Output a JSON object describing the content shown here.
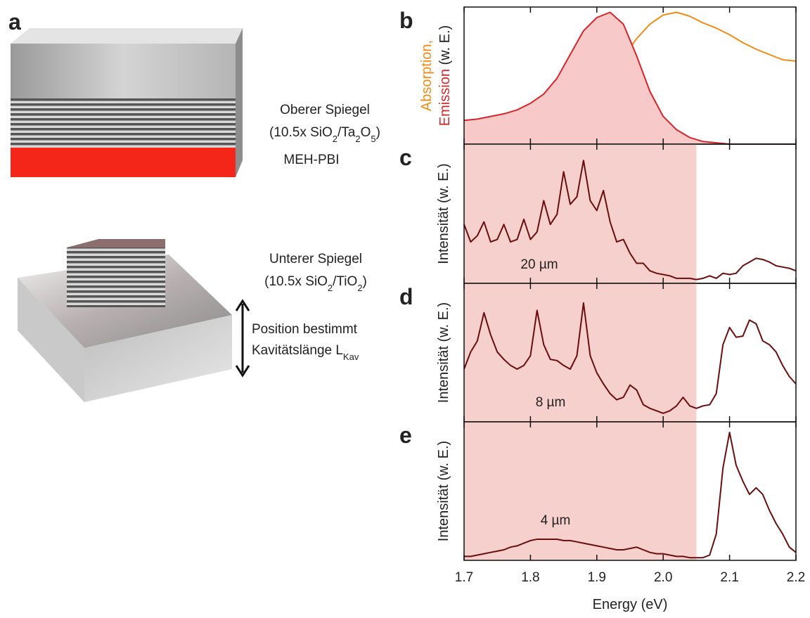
{
  "diagram": {
    "panel_label": "a",
    "top_mirror": "Oberer Spiegel",
    "top_formula": [
      {
        "t": "(10.5x SiO"
      },
      {
        "t": "2",
        "sub": true
      },
      {
        "t": "/Ta"
      },
      {
        "t": "2",
        "sub": true
      },
      {
        "t": "O"
      },
      {
        "t": "5",
        "sub": true
      },
      {
        "t": ")"
      }
    ],
    "active_layer": "MEH-PBI",
    "bottom_mirror": "Unterer Spiegel",
    "bottom_formula": [
      {
        "t": "(10.5x SiO"
      },
      {
        "t": "2",
        "sub": true
      },
      {
        "t": "/TiO"
      },
      {
        "t": "2",
        "sub": true
      },
      {
        "t": ")"
      }
    ],
    "arrow_line1": "Position bestimmt",
    "arrow_line2": [
      {
        "t": "Kavitätslänge L"
      },
      {
        "t": "Kav",
        "sub": true
      }
    ]
  },
  "chart_data": [
    {
      "type": "line",
      "panel_label": "b",
      "ylabel": "(w. E.)",
      "xlim": [
        1.7,
        2.2
      ],
      "xticks": [
        1.7,
        1.8,
        1.9,
        {
          "value": 2.0,
          "label": "2.0"
        },
        2.1,
        2.2
      ],
      "xticklabels": false,
      "ylim": [
        0,
        1.04
      ],
      "x": [
        1.7,
        1.72,
        1.74,
        1.76,
        1.78,
        1.8,
        1.82,
        1.84,
        1.86,
        1.88,
        1.9,
        1.92,
        1.94,
        1.96,
        1.98,
        2.0,
        2.02,
        2.04,
        2.06,
        2.08,
        2.1,
        2.12,
        2.14,
        2.16,
        2.18,
        2.2
      ],
      "series": [
        {
          "name": "Absorption,",
          "color": "#f28a12",
          "values": [
            0.01,
            0.02,
            0.02,
            0.03,
            0.03,
            0.04,
            0.06,
            0.09,
            0.15,
            0.24,
            0.36,
            0.52,
            0.66,
            0.8,
            0.91,
            0.98,
            1.0,
            0.97,
            0.92,
            0.88,
            0.83,
            0.77,
            0.72,
            0.68,
            0.64,
            0.63
          ]
        },
        {
          "name": "Emission",
          "color": "#d6262a",
          "fill": "#f8c9c9",
          "values": [
            0.18,
            0.19,
            0.21,
            0.23,
            0.26,
            0.31,
            0.38,
            0.5,
            0.68,
            0.86,
            0.96,
            1.0,
            0.91,
            0.67,
            0.4,
            0.21,
            0.11,
            0.05,
            0.02,
            0.01,
            0,
            0,
            0,
            0,
            0,
            0
          ]
        }
      ]
    },
    {
      "type": "line",
      "panel_label": "c",
      "ylabel": "Intensität (w. E.)",
      "annotation": "20 µm",
      "xlim": [
        1.7,
        2.2
      ],
      "xticks": [
        1.7,
        1.8,
        1.9,
        {
          "value": 2.0,
          "label": "2.0"
        },
        2.1,
        2.2
      ],
      "xticklabels": false,
      "ylim": [
        0,
        1.11
      ],
      "highlight": {
        "x": [
          1.7,
          2.05
        ],
        "color": "#f5d0cd"
      },
      "x": [
        1.7,
        1.71,
        1.72,
        1.73,
        1.74,
        1.75,
        1.76,
        1.77,
        1.78,
        1.79,
        1.8,
        1.81,
        1.82,
        1.83,
        1.84,
        1.85,
        1.86,
        1.87,
        1.88,
        1.89,
        1.9,
        1.91,
        1.92,
        1.93,
        1.94,
        1.95,
        1.96,
        1.97,
        1.98,
        1.99,
        2.0,
        2.01,
        2.02,
        2.03,
        2.04,
        2.05,
        2.06,
        2.07,
        2.08,
        2.09,
        2.1,
        2.11,
        2.12,
        2.13,
        2.14,
        2.15,
        2.16,
        2.17,
        2.18,
        2.19,
        2.2
      ],
      "series": [
        {
          "color": "#6b0d0d",
          "values": [
            0.47,
            0.33,
            0.38,
            0.49,
            0.33,
            0.35,
            0.47,
            0.33,
            0.35,
            0.51,
            0.35,
            0.41,
            0.66,
            0.47,
            0.55,
            0.89,
            0.63,
            0.69,
            0.98,
            0.66,
            0.58,
            0.74,
            0.49,
            0.33,
            0.35,
            0.24,
            0.16,
            0.16,
            0.1,
            0.08,
            0.07,
            0.06,
            0.04,
            0.04,
            0.04,
            0.03,
            0.04,
            0.06,
            0.04,
            0.08,
            0.07,
            0.08,
            0.14,
            0.17,
            0.2,
            0.19,
            0.17,
            0.14,
            0.13,
            0.12,
            0.1
          ]
        }
      ]
    },
    {
      "type": "line",
      "panel_label": "d",
      "ylabel": "Intensität (w. E.)",
      "annotation": "8 µm",
      "xlim": [
        1.7,
        2.2
      ],
      "xticks": [
        1.7,
        1.8,
        1.9,
        {
          "value": 2.0,
          "label": "2.0"
        },
        2.1,
        2.2
      ],
      "xticklabels": false,
      "ylim": [
        0,
        1.13
      ],
      "highlight": {
        "x": [
          1.7,
          2.05
        ],
        "color": "#f5d0cd"
      },
      "x": [
        1.7,
        1.71,
        1.72,
        1.73,
        1.74,
        1.75,
        1.76,
        1.77,
        1.78,
        1.79,
        1.8,
        1.81,
        1.82,
        1.83,
        1.84,
        1.85,
        1.86,
        1.87,
        1.88,
        1.89,
        1.9,
        1.91,
        1.92,
        1.93,
        1.94,
        1.95,
        1.96,
        1.97,
        1.98,
        1.99,
        2.0,
        2.01,
        2.02,
        2.03,
        2.04,
        2.05,
        2.06,
        2.07,
        2.08,
        2.09,
        2.1,
        2.11,
        2.12,
        2.13,
        2.14,
        2.15,
        2.16,
        2.17,
        2.18,
        2.19,
        2.2
      ],
      "series": [
        {
          "color": "#6b0d0d",
          "values": [
            0.43,
            0.57,
            0.66,
            0.89,
            0.71,
            0.57,
            0.51,
            0.46,
            0.43,
            0.46,
            0.54,
            0.91,
            0.63,
            0.51,
            0.5,
            0.46,
            0.43,
            0.54,
            0.97,
            0.54,
            0.4,
            0.31,
            0.23,
            0.18,
            0.2,
            0.3,
            0.26,
            0.14,
            0.11,
            0.09,
            0.07,
            0.09,
            0.13,
            0.2,
            0.13,
            0.11,
            0.13,
            0.14,
            0.23,
            0.63,
            0.77,
            0.69,
            0.7,
            0.83,
            0.8,
            0.66,
            0.63,
            0.57,
            0.46,
            0.37,
            0.31
          ]
        }
      ]
    },
    {
      "type": "line",
      "panel_label": "e",
      "ylabel": "Intensität (w. E.)",
      "annotation": "4 µm",
      "xlabel": "Energy (eV)",
      "xlim": [
        1.7,
        2.2
      ],
      "xticks": [
        1.7,
        1.8,
        1.9,
        {
          "value": 2.0,
          "label": "2.0"
        },
        2.1,
        2.2
      ],
      "xticklabels": true,
      "ylim": [
        0,
        1.05
      ],
      "highlight": {
        "x": [
          1.7,
          2.05
        ],
        "color": "#f5d0cd"
      },
      "x": [
        1.7,
        1.71,
        1.72,
        1.73,
        1.74,
        1.75,
        1.76,
        1.77,
        1.78,
        1.79,
        1.8,
        1.81,
        1.82,
        1.83,
        1.84,
        1.85,
        1.86,
        1.87,
        1.88,
        1.89,
        1.9,
        1.91,
        1.92,
        1.93,
        1.94,
        1.95,
        1.96,
        1.97,
        1.98,
        1.99,
        2.0,
        2.01,
        2.02,
        2.03,
        2.04,
        2.05,
        2.06,
        2.07,
        2.08,
        2.09,
        2.1,
        2.11,
        2.12,
        2.13,
        2.14,
        2.15,
        2.16,
        2.17,
        2.18,
        2.19,
        2.2
      ],
      "series": [
        {
          "color": "#6b0d0d",
          "values": [
            0.03,
            0.03,
            0.04,
            0.05,
            0.06,
            0.07,
            0.08,
            0.1,
            0.11,
            0.13,
            0.15,
            0.16,
            0.16,
            0.16,
            0.16,
            0.15,
            0.15,
            0.14,
            0.13,
            0.12,
            0.11,
            0.1,
            0.09,
            0.08,
            0.08,
            0.09,
            0.1,
            0.08,
            0.06,
            0.05,
            0.05,
            0.04,
            0.03,
            0.03,
            0.02,
            0.02,
            0.02,
            0.04,
            0.2,
            0.7,
            0.97,
            0.72,
            0.6,
            0.5,
            0.55,
            0.5,
            0.38,
            0.28,
            0.2,
            0.1,
            0.06
          ]
        }
      ]
    }
  ]
}
